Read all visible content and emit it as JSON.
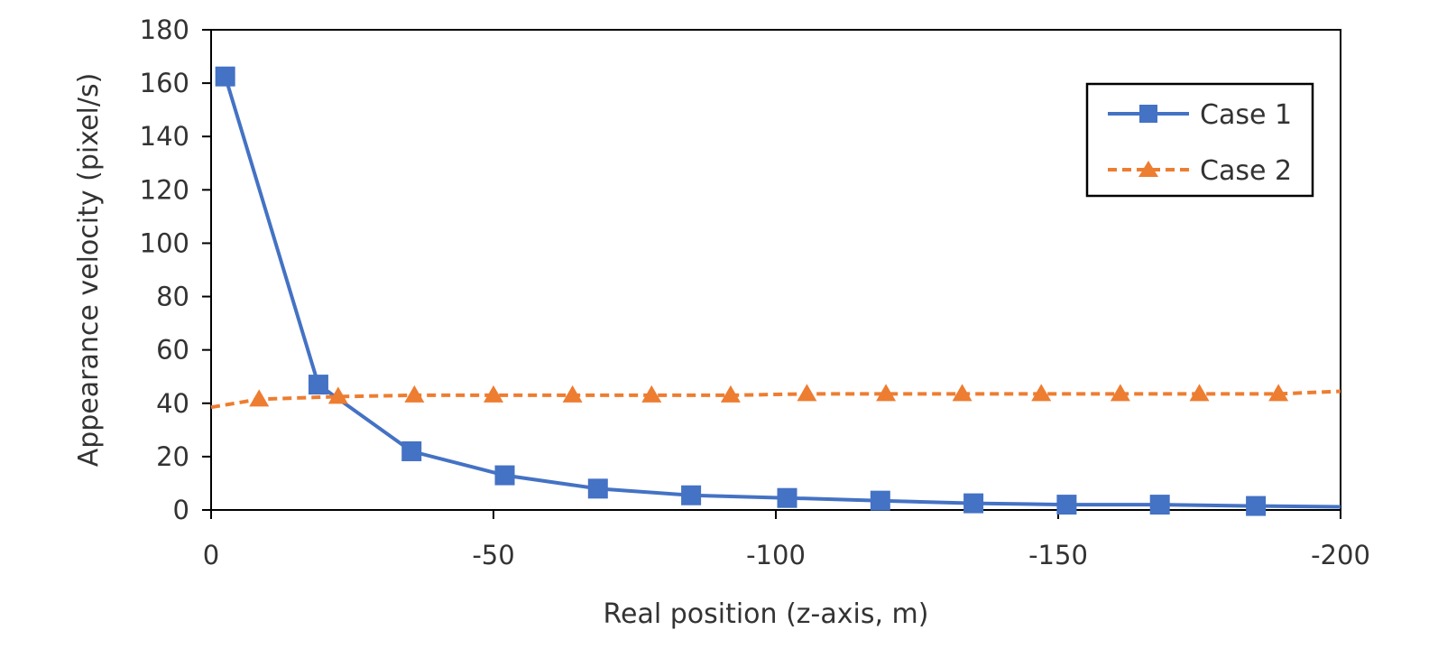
{
  "chart_data": {
    "type": "line",
    "xlabel": "Real position (z-axis, m)",
    "ylabel": "Appearance velocity (pixel/s)",
    "xlim": [
      0,
      -200
    ],
    "ylim": [
      0,
      180
    ],
    "x_ticks": [
      "0",
      "-50",
      "-100",
      "-150",
      "-200"
    ],
    "y_ticks": [
      "0",
      "20",
      "40",
      "60",
      "80",
      "100",
      "120",
      "140",
      "160",
      "180"
    ],
    "grid": false,
    "legend_position": "top-right",
    "series": [
      {
        "name": "Case 1",
        "color": "#4472C4",
        "line_style": "solid",
        "marker": "square",
        "x": [
          -2.5,
          -19,
          -35.5,
          -52,
          -68.5,
          -85,
          -102,
          -118.5,
          -135,
          -151.5,
          -168,
          -185,
          -200
        ],
        "y": [
          162.5,
          47,
          22,
          13,
          8,
          5.5,
          4.5,
          3.5,
          2.5,
          2,
          2,
          1.5,
          1.2
        ]
      },
      {
        "name": "Case 2",
        "color": "#ED7D31",
        "line_style": "dashed",
        "marker": "triangle",
        "x": [
          0,
          -8.5,
          -22.5,
          -36,
          -50,
          -64,
          -78,
          -92,
          -105.5,
          -119.5,
          -133,
          -147,
          -161,
          -175,
          -189,
          -200
        ],
        "y": [
          38.5,
          41.5,
          42.5,
          43,
          43,
          43,
          43,
          43,
          43.5,
          43.5,
          43.5,
          43.5,
          43.5,
          43.5,
          43.5,
          44.5
        ]
      }
    ]
  }
}
